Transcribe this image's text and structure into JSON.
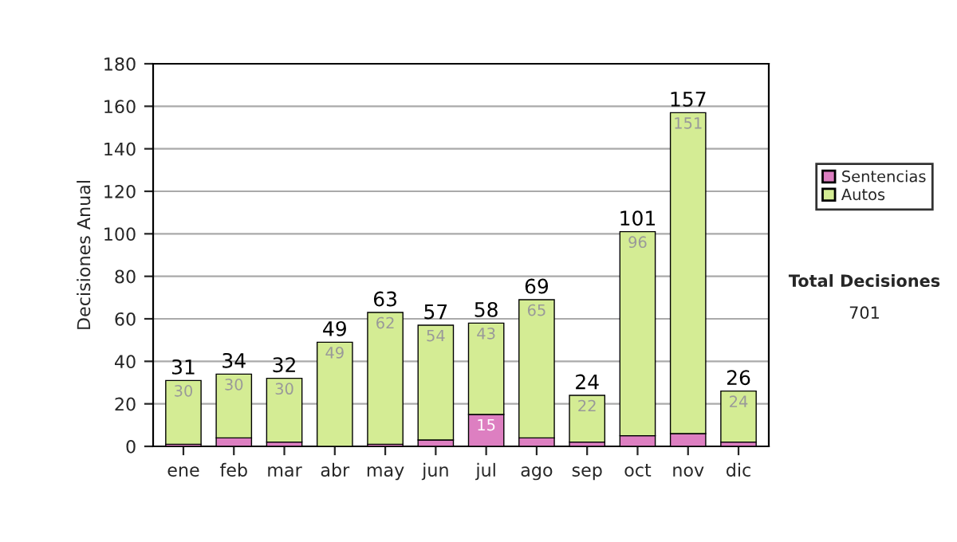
{
  "chart_data": {
    "type": "bar",
    "stacked": true,
    "ylabel": "Decisiones Anual",
    "categories": [
      "ene",
      "feb",
      "mar",
      "abr",
      "may",
      "jun",
      "jul",
      "ago",
      "sep",
      "oct",
      "nov",
      "dic"
    ],
    "series": [
      {
        "name": "Sentencias",
        "color": "#dd7fc1",
        "values": [
          1,
          4,
          2,
          0,
          1,
          3,
          15,
          4,
          2,
          5,
          6,
          2
        ],
        "value_labels": [
          null,
          null,
          null,
          null,
          null,
          null,
          "15",
          null,
          null,
          null,
          null,
          null
        ]
      },
      {
        "name": "Autos",
        "color": "#d4ec94",
        "values": [
          30,
          30,
          30,
          49,
          62,
          54,
          43,
          65,
          22,
          96,
          151,
          24
        ],
        "value_labels": [
          "30",
          "30",
          "30",
          "49",
          "62",
          "54",
          "43",
          "65",
          "22",
          "96",
          "151",
          "24"
        ]
      }
    ],
    "totals": [
      "31",
      "34",
      "32",
      "49",
      "63",
      "57",
      "58",
      "69",
      "24",
      "101",
      "157",
      "26"
    ],
    "ylim": [
      0,
      180
    ],
    "yticks": [
      0,
      20,
      40,
      60,
      80,
      100,
      120,
      140,
      160,
      180
    ],
    "grid": "y",
    "legend": "right",
    "annotations": [
      "Total Decisiones",
      "701"
    ]
  }
}
